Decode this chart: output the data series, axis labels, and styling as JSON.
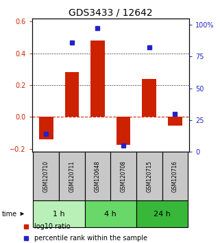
{
  "title": "GDS3433 / 12642",
  "samples": [
    "GSM120710",
    "GSM120711",
    "GSM120648",
    "GSM120708",
    "GSM120715",
    "GSM120716"
  ],
  "log10_ratio": [
    -0.14,
    0.28,
    0.48,
    -0.175,
    0.24,
    -0.055
  ],
  "percentile_rank": [
    14,
    86,
    97,
    5,
    82,
    30
  ],
  "groups": [
    {
      "label": "1 h",
      "samples": [
        0,
        1
      ],
      "color": "#b8f0b8"
    },
    {
      "label": "4 h",
      "samples": [
        2,
        3
      ],
      "color": "#68d868"
    },
    {
      "label": "24 h",
      "samples": [
        4,
        5
      ],
      "color": "#38b838"
    }
  ],
  "bar_color": "#cc2200",
  "dot_color": "#2222cc",
  "ylim_left": [
    -0.22,
    0.62
  ],
  "ylim_right": [
    0,
    105
  ],
  "yticks_left": [
    -0.2,
    0.0,
    0.2,
    0.4,
    0.6
  ],
  "yticks_right": [
    0,
    25,
    50,
    75,
    100
  ],
  "ytick_labels_right": [
    "0",
    "25",
    "50",
    "75",
    "100%"
  ],
  "hlines": [
    0.2,
    0.4
  ],
  "dashed_zero_color": "#cc2200",
  "bar_width": 0.55,
  "sample_box_color": "#c8c8c8",
  "time_label": "time",
  "legend_ratio_label": "log10 ratio",
  "legend_percentile_label": "percentile rank within the sample",
  "title_fontsize": 10,
  "tick_fontsize": 7,
  "legend_fontsize": 7,
  "sample_fontsize": 5.5,
  "time_fontsize": 8
}
